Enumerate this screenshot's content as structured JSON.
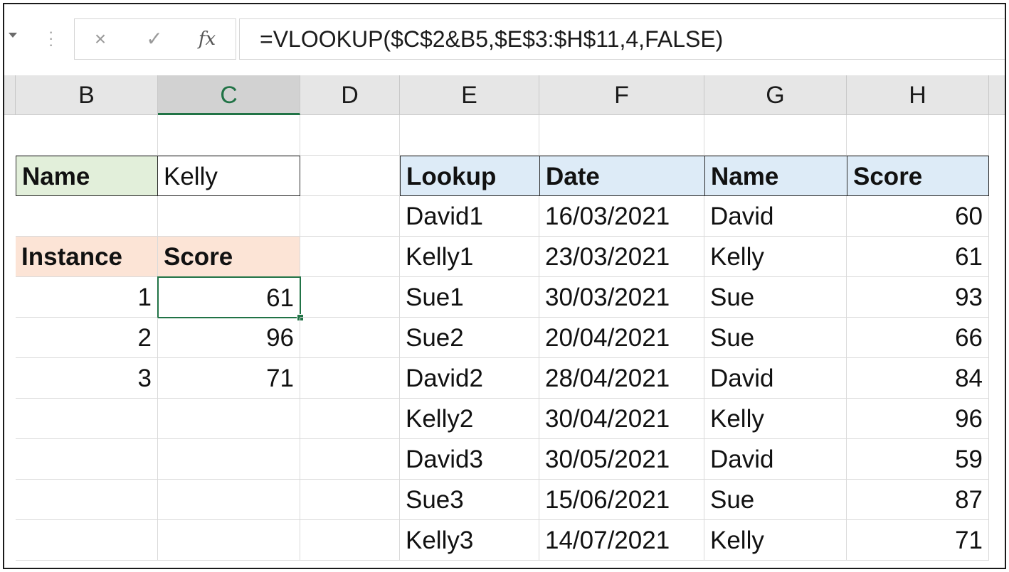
{
  "formula_bar": {
    "cancel_icon": "×",
    "enter_icon": "✓",
    "fx_label": "fx",
    "formula": "=VLOOKUP($C$2&B5,$E$3:$H$11,4,FALSE)"
  },
  "columns": [
    {
      "letter": "B"
    },
    {
      "letter": "C"
    },
    {
      "letter": "D"
    },
    {
      "letter": "E"
    },
    {
      "letter": "F"
    },
    {
      "letter": "G"
    },
    {
      "letter": "H"
    }
  ],
  "left_table": {
    "name_label": "Name",
    "name_value": "Kelly",
    "instance_header": "Instance",
    "score_header": "Score",
    "rows": [
      {
        "instance": "1",
        "score": "61"
      },
      {
        "instance": "2",
        "score": "96"
      },
      {
        "instance": "3",
        "score": "71"
      }
    ]
  },
  "right_table": {
    "headers": [
      "Lookup",
      "Date",
      "Name",
      "Score"
    ],
    "rows": [
      [
        "David1",
        "16/03/2021",
        "David",
        "60"
      ],
      [
        "Kelly1",
        "23/03/2021",
        "Kelly",
        "61"
      ],
      [
        "Sue1",
        "30/03/2021",
        "Sue",
        "93"
      ],
      [
        "Sue2",
        "20/04/2021",
        "Sue",
        "66"
      ],
      [
        "David2",
        "28/04/2021",
        "David",
        "84"
      ],
      [
        "Kelly2",
        "30/04/2021",
        "Kelly",
        "96"
      ],
      [
        "David3",
        "30/05/2021",
        "David",
        "59"
      ],
      [
        "Sue3",
        "15/06/2021",
        "Sue",
        "87"
      ],
      [
        "Kelly3",
        "14/07/2021",
        "Kelly",
        "71"
      ]
    ]
  },
  "colors": {
    "accent": "#217346",
    "name_header_fill": "#e2efda",
    "score_header_fill": "#fce4d6",
    "lookup_header_fill": "#ddebf7"
  }
}
